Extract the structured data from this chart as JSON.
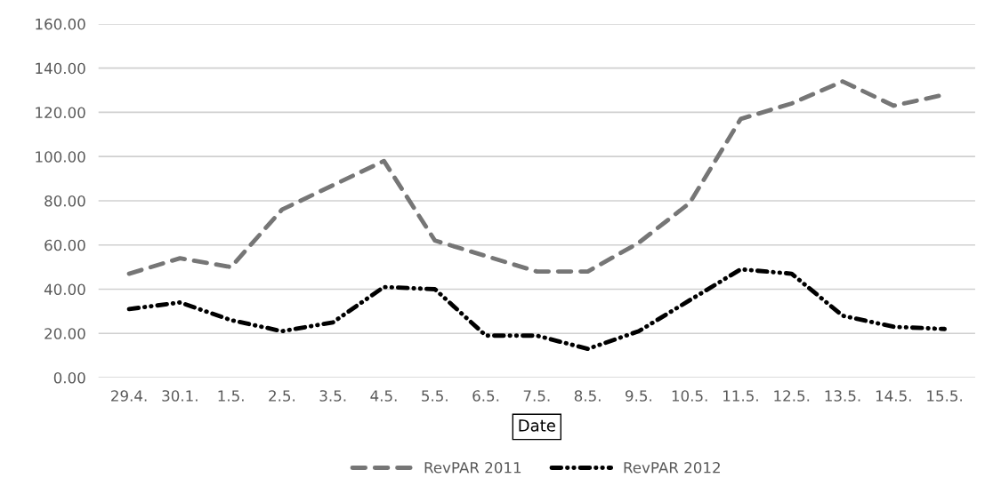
{
  "chart_data": {
    "type": "line",
    "xlabel": "Date",
    "categories": [
      "29.4.",
      "30.1.",
      "1.5.",
      "2.5.",
      "3.5.",
      "4.5.",
      "5.5.",
      "6.5.",
      "7.5.",
      "8.5.",
      "9.5.",
      "10.5.",
      "11.5.",
      "12.5.",
      "13.5.",
      "14.5.",
      "15.5."
    ],
    "series": [
      {
        "name": "RevPAR 2011",
        "color": "#767676",
        "line_style": "dashed",
        "values": [
          47,
          54,
          50,
          76,
          87,
          98,
          62,
          55,
          48,
          48,
          61,
          79,
          117,
          124,
          134,
          123,
          128
        ]
      },
      {
        "name": "RevPAR 2012",
        "color": "#000000",
        "line_style": "dashdot",
        "values": [
          31,
          34,
          26,
          21,
          25,
          41,
          40,
          19,
          19,
          13,
          21,
          35,
          49,
          47,
          28,
          23,
          22
        ]
      }
    ],
    "ylim": [
      0,
      160
    ],
    "yticks": [
      {
        "value": 0,
        "label": "0.00"
      },
      {
        "value": 20,
        "label": "20.00"
      },
      {
        "value": 40,
        "label": "40.00"
      },
      {
        "value": 60,
        "label": "60.00"
      },
      {
        "value": 80,
        "label": "80.00"
      },
      {
        "value": 100,
        "label": "100.00"
      },
      {
        "value": 120,
        "label": "120.00"
      },
      {
        "value": 140,
        "label": "140.00"
      },
      {
        "value": 160,
        "label": "160.00"
      }
    ],
    "grid": "y",
    "legend": "bottom"
  }
}
